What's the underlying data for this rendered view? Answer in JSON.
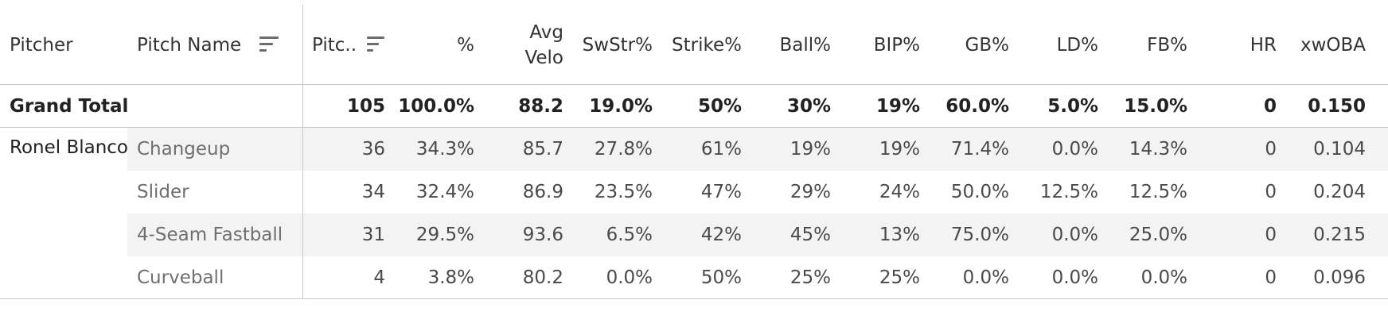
{
  "columns": {
    "pitcher": "Pitcher",
    "pitch_name": "Pitch Name",
    "pitches": "Pitc..",
    "pct": "%",
    "avg_velo_l1": "Avg",
    "avg_velo_l2": "Velo",
    "swstr": "SwStr%",
    "strike": "Strike%",
    "ball": "Ball%",
    "bip": "BIP%",
    "gb": "GB%",
    "ld": "LD%",
    "fb": "FB%",
    "hr": "HR",
    "xwoba": "xwOBA"
  },
  "total": {
    "label": "Grand Total",
    "pitches": "105",
    "pct": "100.0%",
    "velo": "88.2",
    "swstr": "19.0%",
    "strike": "50%",
    "ball": "30%",
    "bip": "19%",
    "gb": "60.0%",
    "ld": "5.0%",
    "fb": "15.0%",
    "hr": "0",
    "xwoba": "0.150"
  },
  "pitcher_name": "Ronel Blanco",
  "rows": [
    {
      "name": "Changeup",
      "pitches": "36",
      "pct": "34.3%",
      "velo": "85.7",
      "swstr": "27.8%",
      "strike": "61%",
      "ball": "19%",
      "bip": "19%",
      "gb": "71.4%",
      "ld": "0.0%",
      "fb": "14.3%",
      "hr": "0",
      "xwoba": "0.104"
    },
    {
      "name": "Slider",
      "pitches": "34",
      "pct": "32.4%",
      "velo": "86.9",
      "swstr": "23.5%",
      "strike": "47%",
      "ball": "29%",
      "bip": "24%",
      "gb": "50.0%",
      "ld": "12.5%",
      "fb": "12.5%",
      "hr": "0",
      "xwoba": "0.204"
    },
    {
      "name": "4-Seam Fastball",
      "pitches": "31",
      "pct": "29.5%",
      "velo": "93.6",
      "swstr": "6.5%",
      "strike": "42%",
      "ball": "45%",
      "bip": "13%",
      "gb": "75.0%",
      "ld": "0.0%",
      "fb": "25.0%",
      "hr": "0",
      "xwoba": "0.215"
    },
    {
      "name": "Curveball",
      "pitches": "4",
      "pct": "3.8%",
      "velo": "80.2",
      "swstr": "0.0%",
      "strike": "50%",
      "ball": "25%",
      "bip": "25%",
      "gb": "0.0%",
      "ld": "0.0%",
      "fb": "0.0%",
      "hr": "0",
      "xwoba": "0.096"
    }
  ]
}
